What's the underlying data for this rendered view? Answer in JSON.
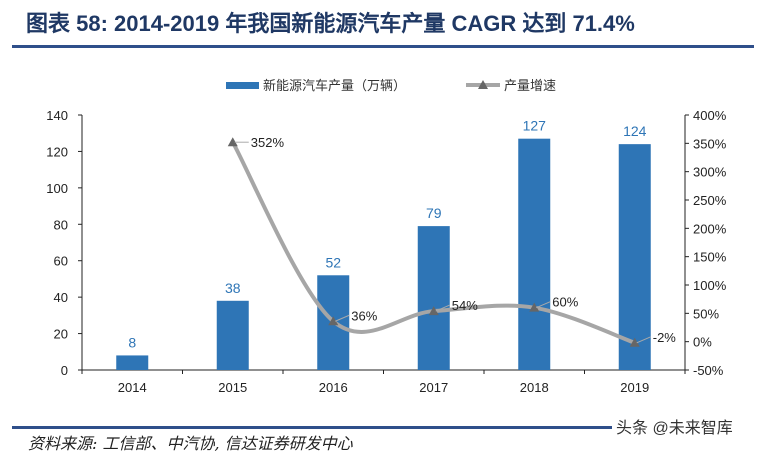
{
  "title": "图表 58:  2014-2019 年我国新能源汽车产量 CAGR 达到 71.4%",
  "source": "资料来源: 工信部、中汽协, 信达证券研发中心",
  "watermark": "头条 @未来智库",
  "chart_data": {
    "type": "bar+line",
    "categories": [
      "2014",
      "2015",
      "2016",
      "2017",
      "2018",
      "2019"
    ],
    "series": [
      {
        "name": "新能源汽车产量（万辆）",
        "type": "bar",
        "axis": "left",
        "color": "#2e75b6",
        "values": [
          8,
          38,
          52,
          79,
          127,
          124
        ],
        "labels": [
          "8",
          "38",
          "52",
          "79",
          "127",
          "124"
        ]
      },
      {
        "name": "产量增速",
        "type": "line",
        "axis": "right",
        "color": "#a6a6a6",
        "marker": "triangle",
        "smooth": true,
        "values": [
          null,
          352,
          36,
          54,
          60,
          -2
        ],
        "labels": [
          "",
          "352%",
          "36%",
          "54%",
          "60%",
          "-2%"
        ]
      }
    ],
    "left_axis": {
      "ylim": [
        0,
        140
      ],
      "ticks": [
        "0",
        "20",
        "40",
        "60",
        "80",
        "100",
        "120",
        "140"
      ]
    },
    "right_axis": {
      "ylim": [
        -50,
        400
      ],
      "unit": "%",
      "ticks": [
        "-50%",
        "0%",
        "50%",
        "100%",
        "150%",
        "200%",
        "250%",
        "300%",
        "350%",
        "400%"
      ]
    },
    "legend": "top-center",
    "grid": false
  }
}
